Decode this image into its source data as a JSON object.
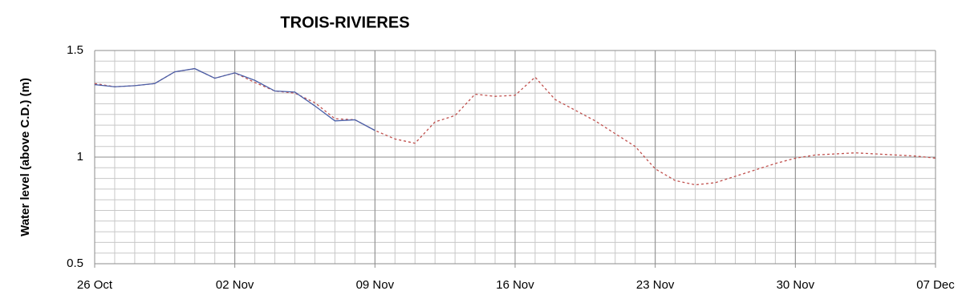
{
  "chart_data": {
    "type": "line",
    "title": "TROIS-RIVIERES",
    "y_label": "Water level (above C.D.) (m)",
    "x": [
      "26 Oct",
      "27 Oct",
      "28 Oct",
      "29 Oct",
      "30 Oct",
      "31 Oct",
      "01 Nov",
      "02 Nov",
      "03 Nov",
      "04 Nov",
      "05 Nov",
      "06 Nov",
      "07 Nov",
      "08 Nov",
      "09 Nov",
      "10 Nov",
      "11 Nov",
      "12 Nov",
      "13 Nov",
      "14 Nov",
      "15 Nov",
      "16 Nov",
      "17 Nov",
      "18 Nov",
      "19 Nov",
      "20 Nov",
      "21 Nov",
      "22 Nov",
      "23 Nov",
      "24 Nov",
      "25 Nov",
      "26 Nov",
      "27 Nov",
      "28 Nov",
      "29 Nov",
      "30 Nov",
      "01 Dec",
      "02 Dec",
      "03 Dec",
      "04 Dec",
      "05 Dec",
      "06 Dec",
      "07 Dec"
    ],
    "series": [
      {
        "color": "#c0504d",
        "dashed": true,
        "values": [
          1.345,
          1.33,
          1.335,
          1.345,
          1.4,
          1.415,
          1.37,
          1.395,
          1.35,
          1.31,
          1.3,
          1.255,
          1.18,
          1.175,
          1.125,
          1.085,
          1.065,
          1.165,
          1.195,
          1.295,
          1.285,
          1.29,
          1.375,
          1.27,
          1.22,
          1.17,
          1.11,
          1.05,
          0.945,
          0.89,
          0.87,
          0.88,
          0.91,
          0.94,
          0.97,
          0.995,
          1.01,
          1.015,
          1.02,
          1.015,
          1.01,
          1.005,
          0.995
        ]
      },
      {
        "color": "#4a5fa8",
        "dashed": false,
        "values": [
          1.34,
          1.33,
          1.335,
          1.345,
          1.4,
          1.415,
          1.37,
          1.395,
          1.36,
          1.31,
          1.305,
          1.24,
          1.17,
          1.175,
          1.125,
          null,
          null,
          null,
          null,
          null,
          null,
          null,
          null,
          null,
          null,
          null,
          null,
          null,
          null,
          null,
          null,
          null,
          null,
          null,
          null,
          null,
          null,
          null,
          null,
          null,
          null,
          null,
          null
        ]
      }
    ],
    "xticks": [
      "26 Oct",
      "02 Nov",
      "09 Nov",
      "16 Nov",
      "23 Nov",
      "30 Nov",
      "07 Dec"
    ],
    "ylim": [
      0.5,
      1.5
    ],
    "yticks": [
      0.5,
      1,
      1.5
    ],
    "grid": true
  }
}
